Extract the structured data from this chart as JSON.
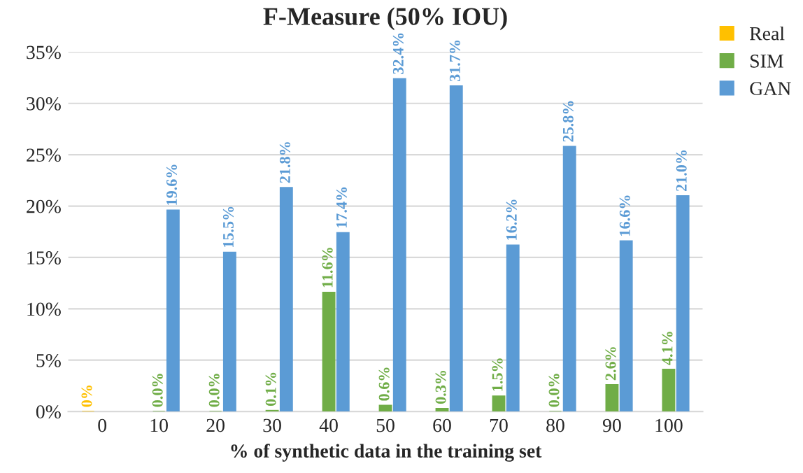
{
  "chart_data": {
    "type": "bar",
    "title": "F-Measure (50% IOU)",
    "xlabel": "% of synthetic data in the training set",
    "categories": [
      "0",
      "10",
      "20",
      "30",
      "40",
      "50",
      "60",
      "70",
      "80",
      "90",
      "100"
    ],
    "series": [
      {
        "name": "Real",
        "color": "#ffc000",
        "values": [
          0,
          null,
          null,
          null,
          null,
          null,
          null,
          null,
          null,
          null,
          null
        ],
        "value_labels": [
          "0%",
          null,
          null,
          null,
          null,
          null,
          null,
          null,
          null,
          null,
          null
        ]
      },
      {
        "name": "SIM",
        "color": "#70ad47",
        "values": [
          null,
          0.0,
          0.0,
          0.1,
          11.6,
          0.6,
          0.3,
          1.5,
          0.0,
          2.6,
          4.1
        ],
        "value_labels": [
          null,
          "0.0%",
          "0.0%",
          "0.1%",
          "11.6%",
          "0.6%",
          "0.3%",
          "1.5%",
          "0.0%",
          "2.6%",
          "4.1%"
        ]
      },
      {
        "name": "GAN",
        "color": "#5b9bd5",
        "values": [
          null,
          19.6,
          15.5,
          21.8,
          17.4,
          32.4,
          31.7,
          16.2,
          25.8,
          16.6,
          21.0
        ],
        "value_labels": [
          null,
          "19.6%",
          "15.5%",
          "21.8%",
          "17.4%",
          "32.4%",
          "31.7%",
          "16.2%",
          "25.8%",
          "16.6%",
          "21.0%"
        ]
      }
    ],
    "ylim": [
      0,
      35
    ],
    "yticks": [
      {
        "value": 0,
        "label": "0%"
      },
      {
        "value": 5,
        "label": "5%"
      },
      {
        "value": 10,
        "label": "10%"
      },
      {
        "value": 15,
        "label": "15%"
      },
      {
        "value": 20,
        "label": "20%"
      },
      {
        "value": 25,
        "label": "25%"
      },
      {
        "value": 30,
        "label": "30%"
      },
      {
        "value": 35,
        "label": "35%"
      }
    ],
    "grid": "y",
    "legend": "top right"
  }
}
